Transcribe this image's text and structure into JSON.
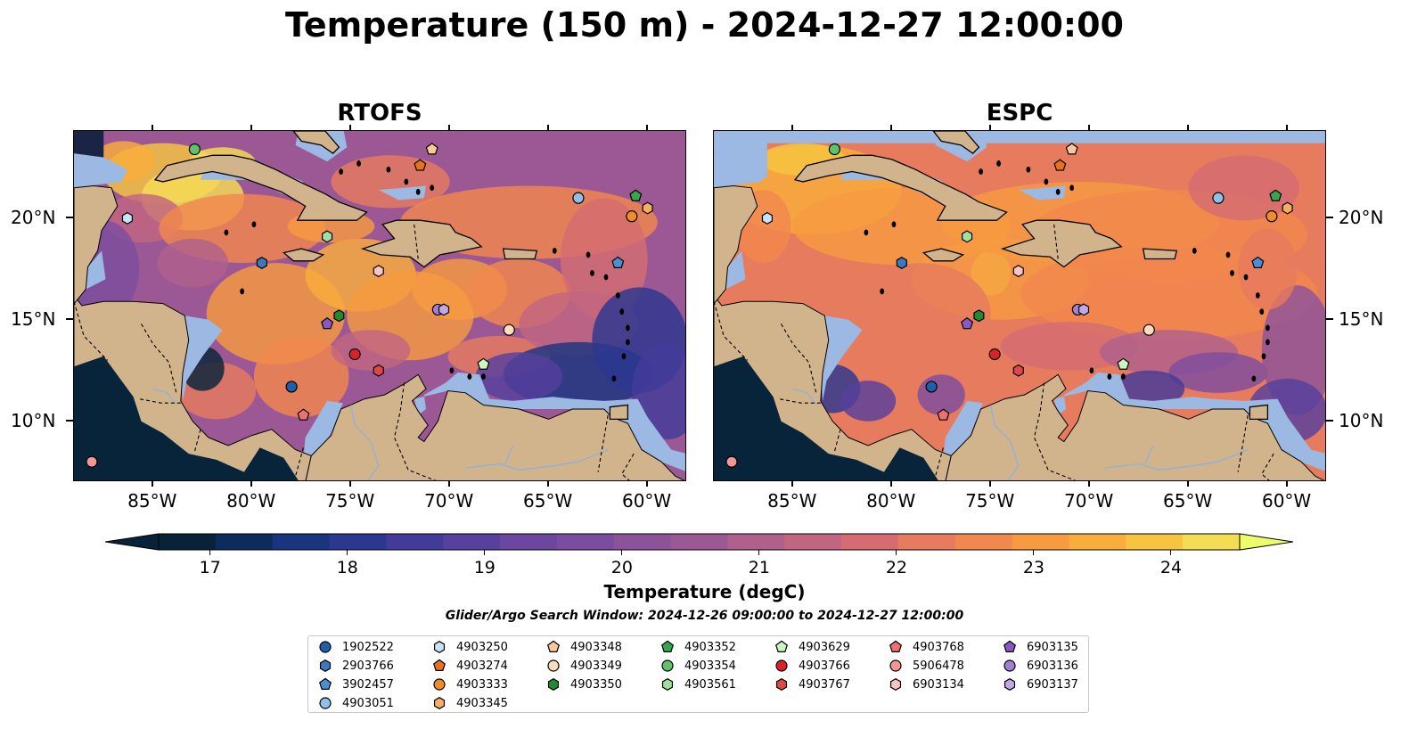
{
  "title": "Temperature (150 m) - 2024-12-27 12:00:00",
  "panels": [
    {
      "title": "RTOFS",
      "variant": "rtofs"
    },
    {
      "title": "ESPC",
      "variant": "espc"
    }
  ],
  "map": {
    "lon_range": [
      -89.0,
      -58.0
    ],
    "lat_range": [
      7.0,
      24.3
    ],
    "lon_ticks": [
      -85,
      -80,
      -75,
      -70,
      -65,
      -60
    ],
    "lon_tick_labels": [
      "85°W",
      "80°W",
      "75°W",
      "70°W",
      "65°W",
      "60°W"
    ],
    "lat_ticks": [
      10,
      15,
      20
    ],
    "lat_tick_labels": [
      "10°N",
      "15°N",
      "20°N"
    ],
    "land_color": "#d2b48c",
    "shelf_color": "#9bb9e3",
    "pacific_color": "#07243a"
  },
  "colorbar": {
    "label": "Temperature (degC)",
    "min": 16.625,
    "max": 24.5,
    "ticks": [
      17,
      18,
      19,
      20,
      21,
      22,
      23,
      24
    ],
    "tick_labels": [
      "17",
      "18",
      "19",
      "20",
      "21",
      "22",
      "23",
      "24"
    ],
    "levels": [
      "#062338",
      "#0d2c5e",
      "#1a3480",
      "#2c3790",
      "#433a9a",
      "#57409e",
      "#6b479f",
      "#7c4d9e",
      "#8c539a",
      "#9c5894",
      "#b0608c",
      "#c26581",
      "#d46c72",
      "#e67b5e",
      "#f2884d",
      "#f79a41",
      "#f9ad3c",
      "#f7c440",
      "#f5dc55"
    ],
    "over_color": "#eefb6a"
  },
  "search_window": "Glider/Argo Search Window: 2024-12-26 09:00:00 to 2024-12-27 12:00:00",
  "markers": [
    {
      "id": "1902522",
      "shape": "circle",
      "color": "#1f5ea8",
      "lon": -78.0,
      "lat": 11.7
    },
    {
      "id": "2903766",
      "shape": "hexagon",
      "color": "#3b78bf",
      "lon": -79.5,
      "lat": 17.8
    },
    {
      "id": "3902457",
      "shape": "pentagon",
      "color": "#4a8fd4",
      "lon": -61.5,
      "lat": 17.8
    },
    {
      "id": "4903051",
      "shape": "circle",
      "color": "#8fc0ea",
      "lon": -63.5,
      "lat": 21.0
    },
    {
      "id": "4903250",
      "shape": "hexagon",
      "color": "#c6e4f7",
      "lon": -86.3,
      "lat": 20.0
    },
    {
      "id": "4903274",
      "shape": "pentagon",
      "color": "#e8711d",
      "lon": -71.5,
      "lat": 22.6
    },
    {
      "id": "4903333",
      "shape": "circle",
      "color": "#f28c24",
      "lon": -60.8,
      "lat": 20.1
    },
    {
      "id": "4903345",
      "shape": "hexagon",
      "color": "#f6ae62",
      "lon": -60.0,
      "lat": 20.5
    },
    {
      "id": "4903348",
      "shape": "pentagon",
      "color": "#f9c99a",
      "lon": -70.9,
      "lat": 23.4
    },
    {
      "id": "4903349",
      "shape": "circle",
      "color": "#fbdcbf",
      "lon": -67.0,
      "lat": 14.5
    },
    {
      "id": "4903350",
      "shape": "hexagon",
      "color": "#1f8a2e",
      "lon": -75.6,
      "lat": 15.2
    },
    {
      "id": "4903352",
      "shape": "pentagon",
      "color": "#34a84a",
      "lon": -60.6,
      "lat": 21.1
    },
    {
      "id": "4903354",
      "shape": "circle",
      "color": "#5fc36b",
      "lon": -82.9,
      "lat": 23.4
    },
    {
      "id": "4903561",
      "shape": "hexagon",
      "color": "#9ee09c",
      "lon": -76.2,
      "lat": 19.1
    },
    {
      "id": "4903629",
      "shape": "pentagon",
      "color": "#c9f5bf",
      "lon": -68.3,
      "lat": 12.8
    },
    {
      "id": "4903766",
      "shape": "circle",
      "color": "#d6242a",
      "lon": -74.8,
      "lat": 13.3
    },
    {
      "id": "4903767",
      "shape": "hexagon",
      "color": "#e04848",
      "lon": -73.6,
      "lat": 12.5
    },
    {
      "id": "4903768",
      "shape": "pentagon",
      "color": "#ee7070",
      "lon": -77.4,
      "lat": 10.3
    },
    {
      "id": "5906478",
      "shape": "circle",
      "color": "#f29696",
      "lon": -88.1,
      "lat": 8.0
    },
    {
      "id": "6903134",
      "shape": "hexagon",
      "color": "#f9c4c4",
      "lon": -73.6,
      "lat": 17.4
    },
    {
      "id": "6903135",
      "shape": "pentagon",
      "color": "#8a57c4",
      "lon": -76.2,
      "lat": 14.8
    },
    {
      "id": "6903136",
      "shape": "circle",
      "color": "#a57ed6",
      "lon": -70.6,
      "lat": 15.5
    },
    {
      "id": "6903137",
      "shape": "hexagon",
      "color": "#c3a6e6",
      "lon": -70.3,
      "lat": 15.5
    }
  ],
  "legend_columns": [
    [
      "1902522",
      "2903766",
      "3902457",
      "4903051"
    ],
    [
      "4903250",
      "4903274",
      "4903333",
      "4903345"
    ],
    [
      "4903348",
      "4903349",
      "4903350"
    ],
    [
      "4903352",
      "4903354",
      "4903561"
    ],
    [
      "4903629",
      "4903766",
      "4903767"
    ],
    [
      "4903768",
      "5906478",
      "6903134"
    ],
    [
      "6903135",
      "6903136",
      "6903137"
    ]
  ]
}
